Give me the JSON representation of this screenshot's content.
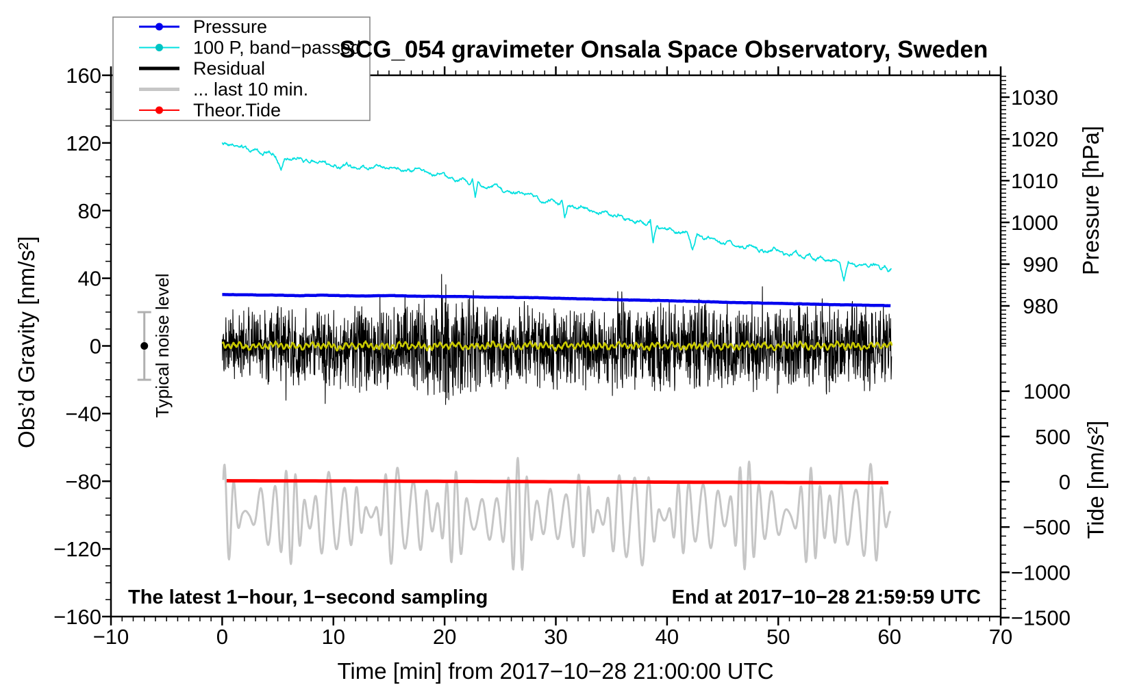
{
  "chart_data": {
    "type": "line",
    "title": "SCG_054 gravimeter Onsala Space Observatory, Sweden",
    "xlabel": "Time [min] from 2017−10−28 21:00:00 UTC",
    "annotations": {
      "left": "The latest 1−hour, 1−second sampling",
      "right": "End at 2017−10−28 21:59:59 UTC"
    },
    "noise_marker": {
      "label": "Typical noise level",
      "t": -7,
      "center": 0,
      "half_range": 20,
      "cap_halfwidth": 10,
      "axis": "gravity",
      "bar_color": "#b0b0b0",
      "dot_color": "#000000"
    },
    "axes": {
      "x": {
        "min": -10,
        "max": 70,
        "major": 10,
        "minor": 1,
        "ticks": [
          -10,
          0,
          10,
          20,
          30,
          40,
          50,
          60,
          70
        ]
      },
      "gravity": {
        "label": "Obs’d Gravity [nm/s²]",
        "min": -160,
        "max": 160,
        "major": 40,
        "minor": 10,
        "ticks": [
          160,
          120,
          80,
          40,
          0,
          -40,
          -80,
          -120,
          -160
        ]
      },
      "pressure": {
        "label": "Pressure [hPa]",
        "minor": 1,
        "ticks": [
          1030,
          1020,
          1010,
          1000,
          990,
          980
        ],
        "minor_range": [
          970,
          1036
        ]
      },
      "tide": {
        "label": "Tide [nm/s²]",
        "minor": 100,
        "ticks": [
          1000,
          500,
          0,
          -500,
          -1000,
          -1500
        ],
        "minor_range": [
          -1500,
          1500
        ]
      }
    },
    "legend": {
      "items": [
        {
          "label": "Pressure",
          "color": "#0000ee",
          "lw": 3,
          "dot": true,
          "dot_color": "#0000ee"
        },
        {
          "label": "100 P, band−passed",
          "color": "#00e0e0",
          "lw": 2,
          "dot": true,
          "dot_color": "#00c3c3"
        },
        {
          "label": "Residual",
          "color": "#000000",
          "lw": 5,
          "dot": false,
          "dot_color": ""
        },
        {
          "label": "... last 10 min.",
          "color": "#c6c6c6",
          "lw": 5,
          "dot": false,
          "dot_color": ""
        },
        {
          "label": "Theor.Tide",
          "color": "#ff0000",
          "lw": 2,
          "dot": true,
          "dot_color": "#ff0000"
        }
      ]
    },
    "seed": 1337,
    "series": [
      {
        "name": "residual-last-10-min",
        "legend": "... last 10 min.",
        "color": "#c6c6c6",
        "width": 3,
        "axis": "gravity",
        "gen": "osc",
        "t0": 0.1,
        "t1": 60.1,
        "step": 0.04,
        "center": [
          [
            0,
            -99
          ],
          [
            8,
            -101
          ],
          [
            15,
            -99
          ],
          [
            22,
            -102
          ],
          [
            30,
            -100
          ],
          [
            38,
            -102
          ],
          [
            45,
            -99
          ],
          [
            52,
            -101
          ],
          [
            60.2,
            -100
          ]
        ],
        "amp_base": 17,
        "amp_components": [
          [
            8,
            5.3,
            1.7
          ],
          [
            6,
            2.9,
            0.4
          ],
          [
            4,
            9.7,
            3.0
          ]
        ],
        "carrier_period": 1.05,
        "phase_mod": [
          1.8,
          6.7
        ],
        "clip_min": -134,
        "clip_max": -66
      },
      {
        "name": "theoretical-tide",
        "legend": "Theor.Tide",
        "color": "#ff0000",
        "width": 5,
        "axis": "tide",
        "gen": "control",
        "t0": 0.4,
        "t1": 60.1,
        "step": 0.5,
        "jitter": 0,
        "quant": 0,
        "points": [
          [
            0.4,
            11
          ],
          [
            15,
            7
          ],
          [
            30,
            0
          ],
          [
            45,
            -6
          ],
          [
            60.1,
            -11
          ]
        ]
      },
      {
        "name": "residual",
        "legend": "Residual",
        "color": "#000000",
        "width": 1.1,
        "axis": "gravity",
        "gen": "noise",
        "t0": 0,
        "t1": 60.2,
        "step": 0.024,
        "spike_chance": 0.018,
        "spike_gain": 1.7,
        "envelope": [
          [
            0,
            25
          ],
          [
            3,
            23
          ],
          [
            5,
            27
          ],
          [
            8,
            24
          ],
          [
            10,
            26
          ],
          [
            12,
            29
          ],
          [
            13,
            33
          ],
          [
            14,
            27
          ],
          [
            15,
            29
          ],
          [
            16,
            34
          ],
          [
            17,
            29
          ],
          [
            18,
            31
          ],
          [
            19,
            33
          ],
          [
            19.7,
            45
          ],
          [
            20.4,
            38
          ],
          [
            21,
            33
          ],
          [
            22,
            35
          ],
          [
            23,
            29
          ],
          [
            24,
            27
          ],
          [
            25,
            29
          ],
          [
            26,
            27
          ],
          [
            27,
            31
          ],
          [
            28,
            29
          ],
          [
            29,
            25
          ],
          [
            30,
            27
          ],
          [
            31,
            29
          ],
          [
            32,
            27
          ],
          [
            33,
            29
          ],
          [
            34,
            27
          ],
          [
            35,
            33
          ],
          [
            35.8,
            39
          ],
          [
            36.4,
            31
          ],
          [
            37,
            29
          ],
          [
            38,
            27
          ],
          [
            39,
            29
          ],
          [
            40,
            31
          ],
          [
            41,
            27
          ],
          [
            42,
            29
          ],
          [
            43,
            31
          ],
          [
            44,
            27
          ],
          [
            45,
            25
          ],
          [
            46,
            29
          ],
          [
            47,
            27
          ],
          [
            48,
            29
          ],
          [
            49,
            27
          ],
          [
            50,
            29
          ],
          [
            51,
            31
          ],
          [
            52,
            29
          ],
          [
            53,
            27
          ],
          [
            54,
            33
          ],
          [
            55,
            29
          ],
          [
            56,
            27
          ],
          [
            57,
            31
          ],
          [
            58,
            29
          ],
          [
            59,
            27
          ],
          [
            60.2,
            29
          ]
        ]
      },
      {
        "name": "residual-smoothed",
        "legend": "",
        "color": "#c9c900",
        "width": 2.6,
        "axis": "gravity",
        "gen": "wiggle",
        "t0": 0,
        "t1": 60.2,
        "step": 0.05,
        "components": [
          [
            1.3,
            0.53,
            0.8
          ],
          [
            0.8,
            1.63,
            2.1
          ],
          [
            0.5,
            3.9,
            0.3
          ]
        ],
        "fm": [
          1.2,
          4.7
        ],
        "jitter": 0.5
      },
      {
        "name": "pressure",
        "legend": "Pressure",
        "color": "#0000ee",
        "width": 4.5,
        "axis": "pressure",
        "gen": "control",
        "t0": 0,
        "t1": 60.1,
        "step": 0.1,
        "jitter": 0.04,
        "quant": 0.05,
        "points": [
          [
            0,
            982.7
          ],
          [
            4,
            982.6
          ],
          [
            7,
            982.45
          ],
          [
            9,
            982.55
          ],
          [
            12,
            982.4
          ],
          [
            15,
            982.45
          ],
          [
            18,
            982.3
          ],
          [
            21,
            982.25
          ],
          [
            24,
            982.1
          ],
          [
            27,
            982.0
          ],
          [
            30,
            981.85
          ],
          [
            33,
            981.65
          ],
          [
            36,
            981.45
          ],
          [
            39,
            981.3
          ],
          [
            42,
            981.1
          ],
          [
            45,
            980.9
          ],
          [
            48,
            980.7
          ],
          [
            51,
            980.55
          ],
          [
            54,
            980.35
          ],
          [
            57,
            980.2
          ],
          [
            60.1,
            980.05
          ]
        ]
      },
      {
        "name": "pressure-bandpassed-x100",
        "legend": "100 P, band−passed",
        "color": "#00e0e0",
        "width": 1.7,
        "axis": "gravity",
        "gen": "control",
        "t0": 0,
        "t1": 60.15,
        "step": 0.05,
        "jitter": 1.4,
        "quant": 0,
        "points": [
          [
            0,
            120.5
          ],
          [
            0.5,
            118
          ],
          [
            0.9,
            120
          ],
          [
            1.4,
            117.5
          ],
          [
            2,
            117.8
          ],
          [
            2.5,
            114.5
          ],
          [
            3,
            116
          ],
          [
            3.7,
            113.5
          ],
          [
            4.2,
            115
          ],
          [
            4.8,
            112.5
          ],
          [
            5.3,
            104
          ],
          [
            5.6,
            111
          ],
          [
            6.2,
            110.5
          ],
          [
            6.8,
            112
          ],
          [
            7.4,
            108.5
          ],
          [
            8,
            109.5
          ],
          [
            8.6,
            107.5
          ],
          [
            9.2,
            108.8
          ],
          [
            10,
            107
          ],
          [
            10.6,
            105.5
          ],
          [
            11.2,
            107.2
          ],
          [
            12,
            105
          ],
          [
            12.6,
            106.3
          ],
          [
            13.4,
            104.5
          ],
          [
            14,
            106.5
          ],
          [
            14.8,
            105
          ],
          [
            15.5,
            106
          ],
          [
            16.2,
            104
          ],
          [
            17,
            103.5
          ],
          [
            17.6,
            105
          ],
          [
            18.3,
            102.5
          ],
          [
            19,
            101
          ],
          [
            19.6,
            102.3
          ],
          [
            20.3,
            99.5
          ],
          [
            21,
            97.5
          ],
          [
            21.6,
            98.8
          ],
          [
            22.2,
            96
          ],
          [
            22.5,
            99
          ],
          [
            22.75,
            88.5
          ],
          [
            23,
            97
          ],
          [
            23.4,
            94
          ],
          [
            24,
            93.5
          ],
          [
            24.6,
            95
          ],
          [
            25.2,
            92
          ],
          [
            26,
            90
          ],
          [
            26.6,
            91.5
          ],
          [
            27.2,
            88.5
          ],
          [
            27.8,
            90
          ],
          [
            28.4,
            86.5
          ],
          [
            29,
            85
          ],
          [
            29.6,
            86.3
          ],
          [
            30.2,
            84
          ],
          [
            30.55,
            86
          ],
          [
            30.8,
            75.5
          ],
          [
            31.1,
            83
          ],
          [
            31.7,
            81.5
          ],
          [
            32.3,
            82.8
          ],
          [
            33,
            80
          ],
          [
            33.8,
            78.5
          ],
          [
            34.4,
            79.8
          ],
          [
            35,
            76.5
          ],
          [
            35.7,
            78
          ],
          [
            36.3,
            74.5
          ],
          [
            37,
            73
          ],
          [
            37.6,
            74.3
          ],
          [
            38.2,
            71
          ],
          [
            38.5,
            73.5
          ],
          [
            38.75,
            60
          ],
          [
            39.05,
            70.5
          ],
          [
            39.6,
            68.5
          ],
          [
            40.2,
            69.8
          ],
          [
            41,
            66.5
          ],
          [
            41.8,
            68
          ],
          [
            42.3,
            56
          ],
          [
            42.7,
            65.5
          ],
          [
            43.2,
            63
          ],
          [
            43.8,
            64.5
          ],
          [
            44.4,
            62
          ],
          [
            45,
            60.5
          ],
          [
            45.6,
            62
          ],
          [
            46.2,
            59.5
          ],
          [
            47,
            58
          ],
          [
            47.6,
            59.8
          ],
          [
            48.2,
            57
          ],
          [
            49,
            55.5
          ],
          [
            49.6,
            57.2
          ],
          [
            50.2,
            54.5
          ],
          [
            51,
            53
          ],
          [
            51.6,
            54.8
          ],
          [
            52.2,
            52
          ],
          [
            52.8,
            53.5
          ],
          [
            53.4,
            51
          ],
          [
            54,
            52.5
          ],
          [
            54.5,
            50
          ],
          [
            55,
            51.5
          ],
          [
            55.5,
            49
          ],
          [
            55.9,
            38.5
          ],
          [
            56.3,
            49.5
          ],
          [
            57,
            47.5
          ],
          [
            57.6,
            49
          ],
          [
            58.2,
            46.5
          ],
          [
            58.7,
            48.5
          ],
          [
            59.2,
            45.5
          ],
          [
            59.6,
            47.5
          ],
          [
            59.9,
            43.5
          ],
          [
            60.15,
            45.5
          ]
        ]
      }
    ]
  }
}
